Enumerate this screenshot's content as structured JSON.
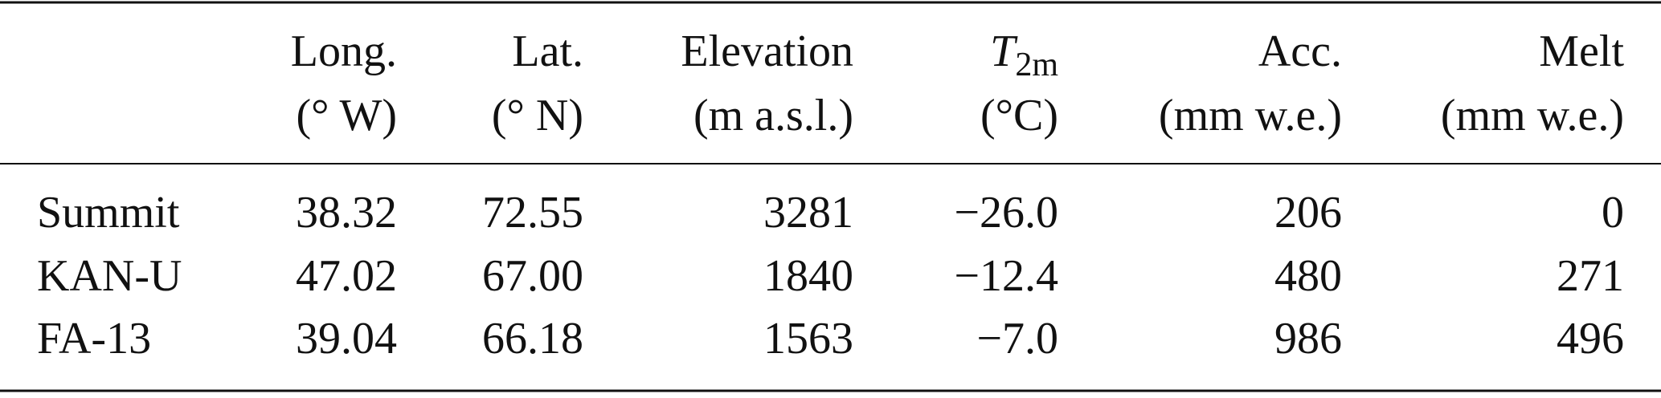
{
  "table": {
    "header": [
      {
        "line1": "",
        "line2": ""
      },
      {
        "line1": "Long.",
        "line2": "(° W)"
      },
      {
        "line1": "Lat.",
        "line2": "(° N)"
      },
      {
        "line1": "Elevation",
        "line2": "(m a.s.l.)"
      },
      {
        "symbol": "T",
        "subscript": "2m",
        "line2": "(°C)"
      },
      {
        "line1": "Acc.",
        "line2": "(mm w.e.)"
      },
      {
        "line1": "Melt",
        "line2": "(mm w.e.)"
      }
    ],
    "rows": [
      [
        "Summit",
        "38.32",
        "72.55",
        "3281",
        "−26.0",
        "206",
        "0"
      ],
      [
        "KAN-U",
        "47.02",
        "67.00",
        "1840",
        "−12.4",
        "480",
        "271"
      ],
      [
        "FA-13",
        "39.04",
        "66.18",
        "1563",
        "−7.0",
        "986",
        "496"
      ]
    ]
  }
}
